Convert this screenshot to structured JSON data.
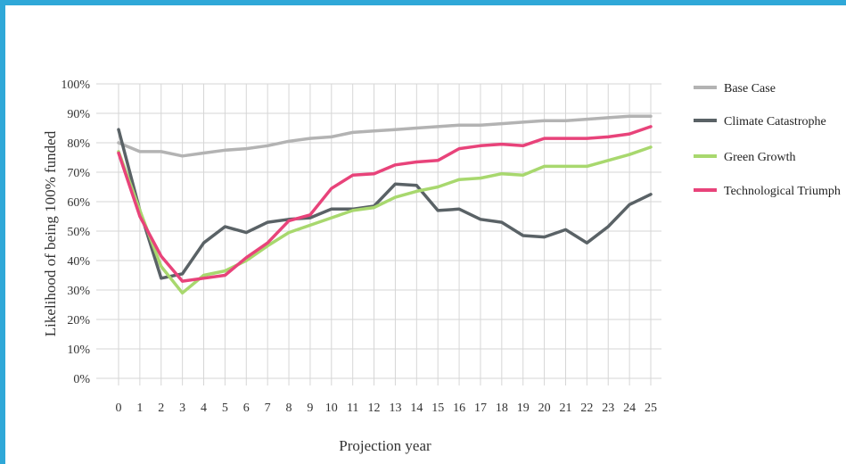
{
  "chart_data": {
    "type": "line",
    "xlabel": "Projection year",
    "ylabel": "Likelihood of being 100% funded",
    "x": [
      0,
      1,
      2,
      3,
      4,
      5,
      6,
      7,
      8,
      9,
      10,
      11,
      12,
      13,
      14,
      15,
      16,
      17,
      18,
      19,
      20,
      21,
      22,
      23,
      24,
      25
    ],
    "ylim": [
      0,
      100
    ],
    "yticks": [
      "0%",
      "10%",
      "20%",
      "30%",
      "40%",
      "50%",
      "60%",
      "70%",
      "80%",
      "90%",
      "100%"
    ],
    "grid": true,
    "legend_position": "right",
    "series": [
      {
        "name": "Base Case",
        "color": "#b3b3b3",
        "values": [
          80,
          77,
          77,
          75.5,
          76.5,
          77.5,
          78,
          79,
          80.5,
          81.5,
          82,
          83.5,
          84,
          84.5,
          85,
          85.5,
          86,
          86,
          86.5,
          87,
          87.5,
          87.5,
          88,
          88.5,
          89,
          89
        ]
      },
      {
        "name": "Climate Catastrophe",
        "color": "#5a6266",
        "values": [
          84.5,
          57,
          34,
          35.5,
          46,
          51.5,
          49.5,
          53,
          54,
          54.5,
          57.5,
          57.5,
          58.5,
          66,
          65.5,
          57,
          57.5,
          54,
          53,
          48.5,
          48,
          50.5,
          46,
          51.5,
          59,
          62.5
        ]
      },
      {
        "name": "Green Growth",
        "color": "#a8d86e",
        "values": [
          77,
          57,
          38,
          29,
          35,
          36.5,
          40,
          45,
          49.5,
          52,
          54.5,
          57,
          58,
          61.5,
          63.5,
          65,
          67.5,
          68,
          69.5,
          69,
          72,
          72,
          72,
          74,
          76,
          78.5
        ]
      },
      {
        "name": "Technological Triumph",
        "color": "#e8437a",
        "values": [
          76.5,
          55,
          41.5,
          33,
          34,
          35,
          41,
          46,
          53.5,
          55.5,
          64.5,
          69,
          69.5,
          72.5,
          73.5,
          74,
          78,
          79,
          79.5,
          79,
          81.5,
          81.5,
          81.5,
          82,
          83,
          85.5
        ]
      }
    ]
  }
}
